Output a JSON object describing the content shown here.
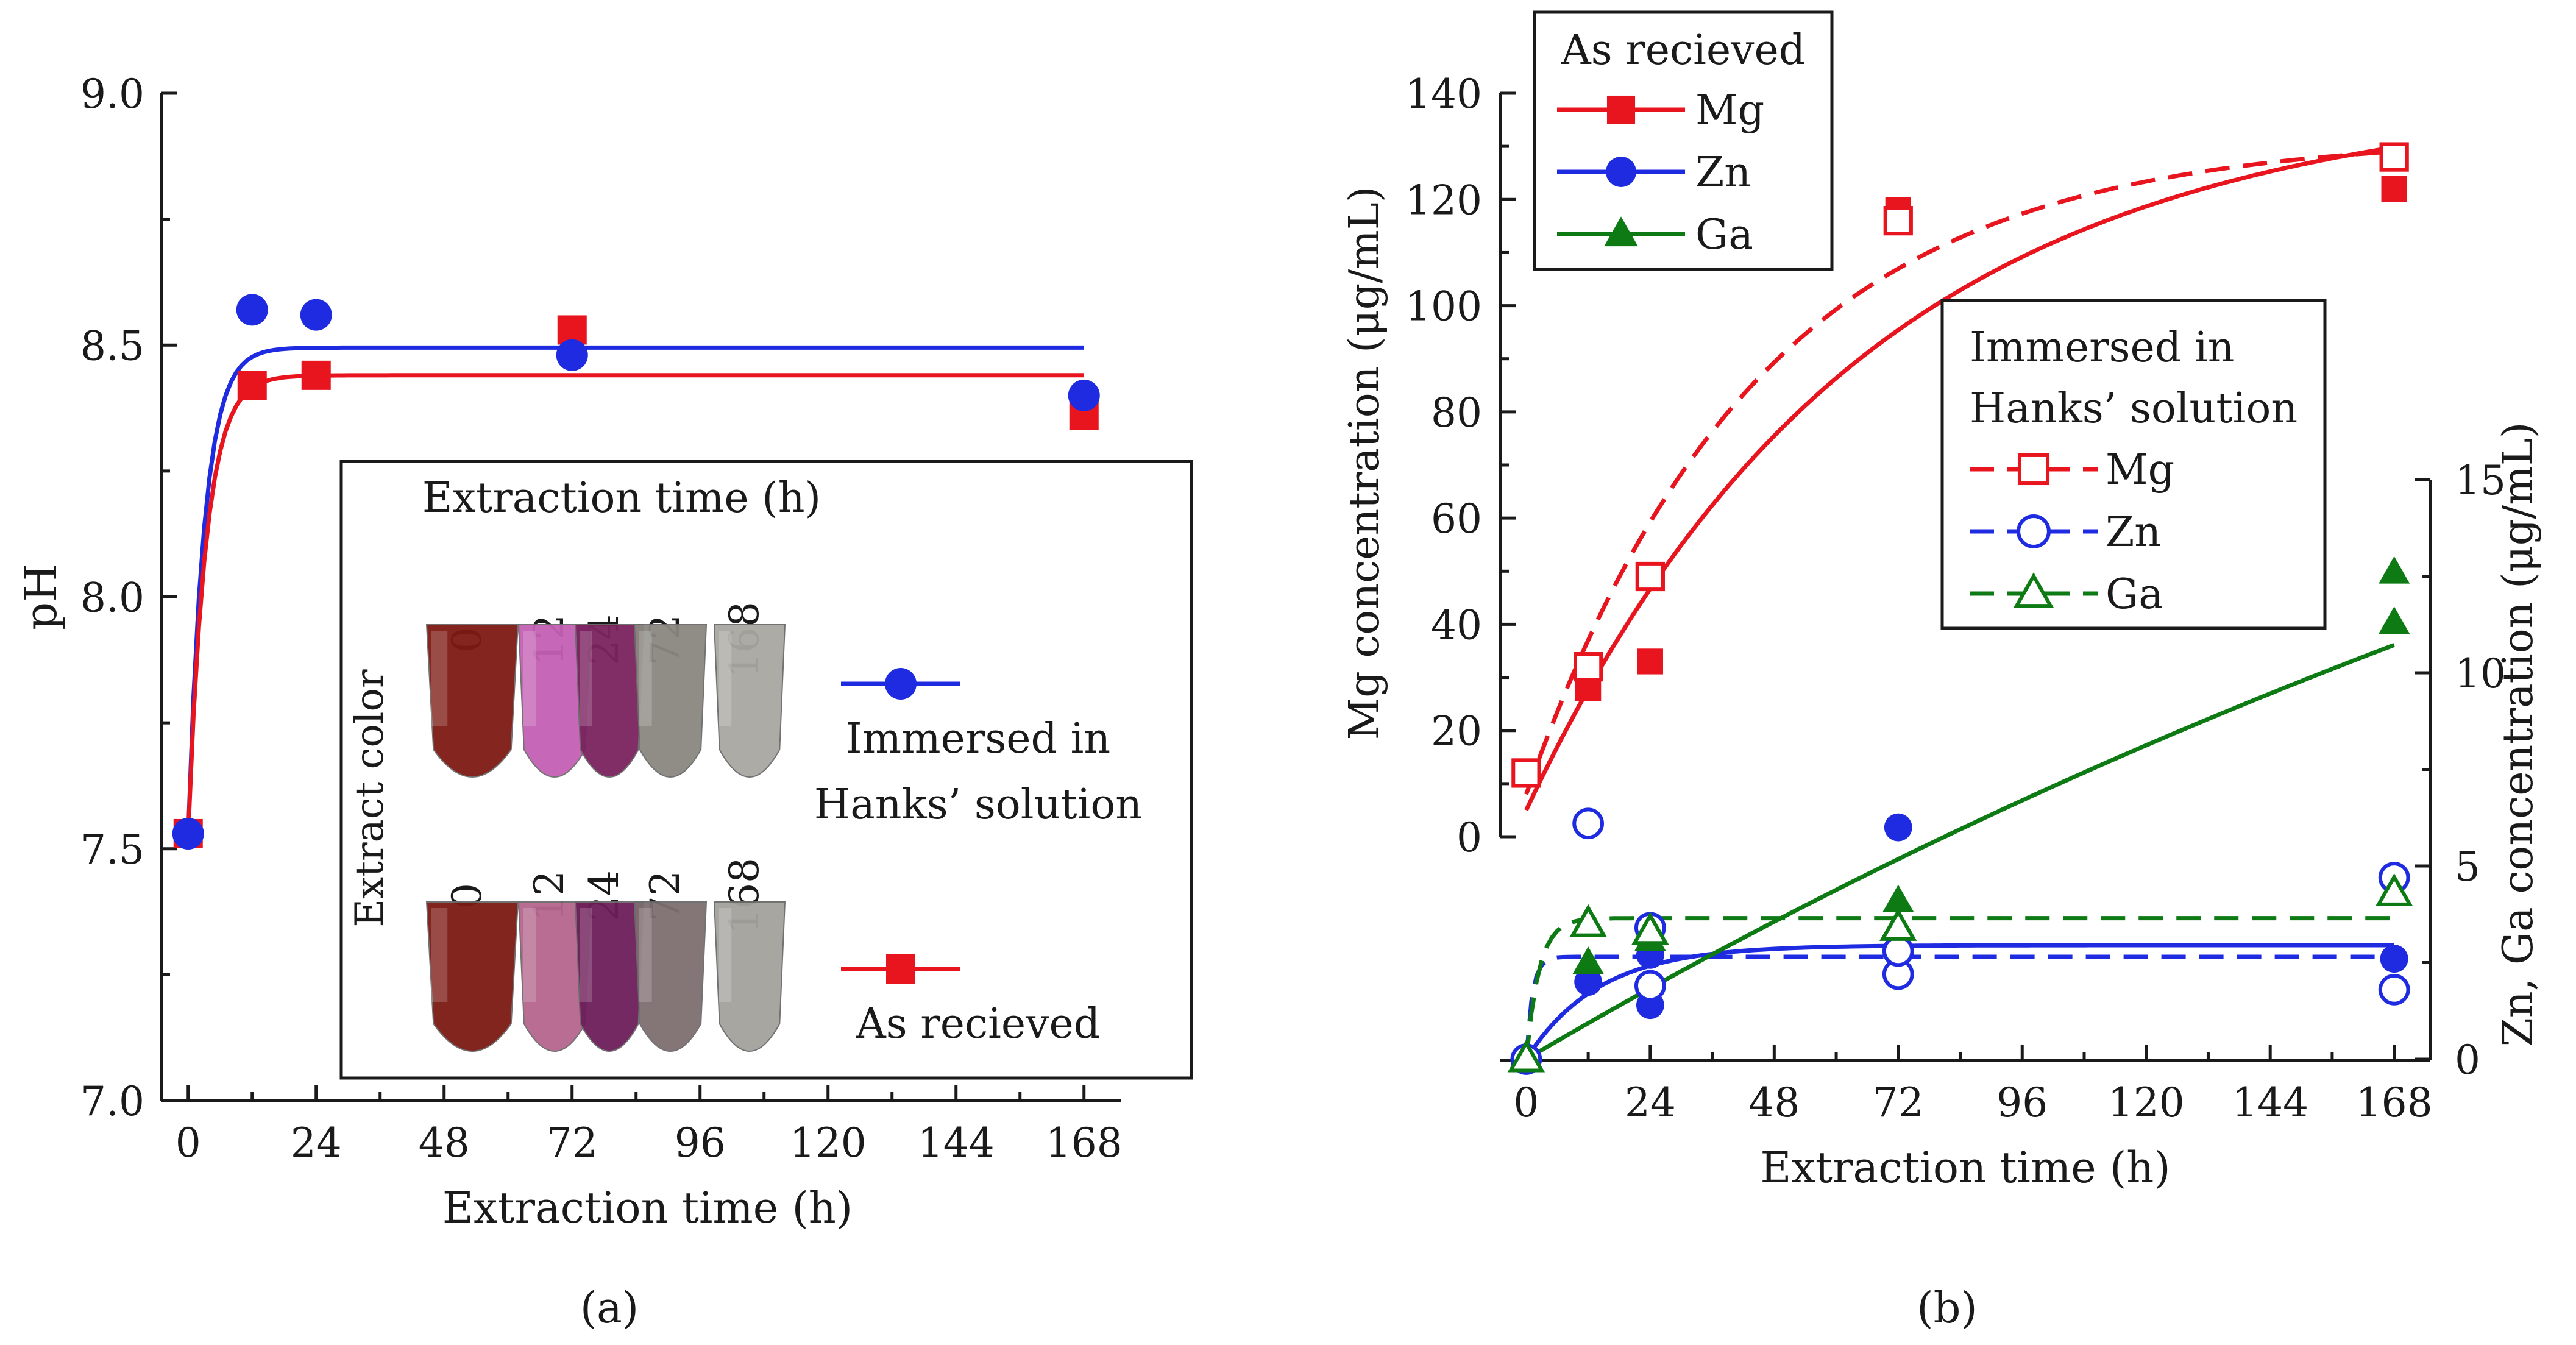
{
  "colors": {
    "red": "#e8141e",
    "blue": "#1f2be0",
    "green": "#0d7a14",
    "black": "#1a1a1a"
  },
  "chart_data": [
    {
      "id": "a",
      "type": "scatter",
      "panel_label": "a",
      "xlabel": "Extraction time (h)",
      "ylabel": "pH",
      "xlim": [
        -5,
        175
      ],
      "ylim": [
        7.0,
        9.0
      ],
      "xticks": [
        0,
        24,
        48,
        72,
        96,
        120,
        144,
        168
      ],
      "yticks": [
        "7.0",
        "7.5",
        "8.0",
        "8.5",
        "9.0"
      ],
      "series": [
        {
          "name": "Immersed in Hanks’ solution",
          "color": "blue",
          "marker": "circle",
          "x": [
            0,
            12,
            24,
            72,
            168
          ],
          "y": [
            7.53,
            8.57,
            8.56,
            8.48,
            8.4
          ],
          "fit": {
            "y0": 7.53,
            "plateau": 8.495,
            "rate": 0.33
          }
        },
        {
          "name": "As recieved",
          "color": "red",
          "marker": "square",
          "x": [
            0,
            12,
            24,
            72,
            168
          ],
          "y": [
            7.53,
            8.42,
            8.44,
            8.53,
            8.36
          ],
          "fit": {
            "y0": 7.53,
            "plateau": 8.44,
            "rate": 0.3
          }
        }
      ],
      "inset": {
        "title": "Extraction time (h)",
        "row_label": "Extract color",
        "times": [
          "0",
          "12",
          "24",
          "72",
          "168"
        ],
        "rows": [
          {
            "name": "Immersed in Hanks’ solution",
            "legend_lines": [
              "Immersed in",
              "Hanks’ solution"
            ],
            "marker": "circle",
            "color": "blue",
            "tube_colors": [
              "#7e1a14",
              "#c35fb4",
              "#7b235f",
              "#8a8780",
              "#a9a7a1"
            ]
          },
          {
            "name": "As recieved",
            "legend_lines": [
              "As recieved"
            ],
            "marker": "square",
            "color": "red",
            "tube_colors": [
              "#7d1a14",
              "#b6668e",
              "#6e1e5a",
              "#7e6e70",
              "#a4a29c"
            ]
          }
        ]
      }
    },
    {
      "id": "b",
      "type": "scatter",
      "panel_label": "b",
      "xlabel": "Extraction time (h)",
      "ylabel_left": "Mg concentration (μg/mL)",
      "ylabel_right": "Zn, Ga concentration (μg/mL)",
      "xlim": [
        -5,
        175
      ],
      "ylim_left": [
        -42,
        140
      ],
      "ylim_right": [
        0,
        15
      ],
      "xticks": [
        0,
        24,
        48,
        72,
        96,
        120,
        144,
        168
      ],
      "yticks_left": [
        0,
        20,
        40,
        60,
        80,
        100,
        120,
        140
      ],
      "yticks_right": [
        0,
        5,
        10,
        15
      ],
      "legend_as_received": {
        "title": "As recieved",
        "entries": [
          "Mg",
          "Zn",
          "Ga"
        ]
      },
      "legend_immersed": {
        "title_lines": [
          "Immersed in",
          "Hanks’ solution"
        ],
        "entries": [
          "Mg",
          "Zn",
          "Ga"
        ]
      },
      "series": [
        {
          "name": "Mg",
          "condition": "As recieved",
          "axis": "left",
          "color": "red",
          "marker": "square",
          "filled": true,
          "x": [
            0,
            12,
            24,
            72,
            168
          ],
          "y": [
            12,
            28,
            33,
            118,
            122
          ],
          "fit": {
            "type": "exp",
            "y0": 5,
            "plateau": 140,
            "tau": 65,
            "dash": false
          }
        },
        {
          "name": "Mg",
          "condition": "Immersed in Hanks’ solution",
          "axis": "left",
          "color": "red",
          "marker": "square",
          "filled": false,
          "x": [
            0,
            12,
            24,
            72,
            168
          ],
          "y": [
            12,
            32,
            49,
            116,
            128
          ],
          "fit": {
            "type": "exp",
            "y0": 8,
            "plateau": 132,
            "tau": 45,
            "dash": true
          }
        },
        {
          "name": "Zn",
          "condition": "As recieved",
          "axis": "right",
          "color": "blue",
          "marker": "circle",
          "filled": true,
          "x": [
            0,
            12,
            24,
            24,
            72,
            168,
            168
          ],
          "y": [
            0,
            2.0,
            1.4,
            2.7,
            6.0,
            2.6,
            2.6
          ],
          "fit": {
            "type": "exp",
            "y0": 0,
            "plateau": 2.95,
            "tau": 14,
            "dash": false
          }
        },
        {
          "name": "Zn",
          "condition": "Immersed in Hanks’ solution",
          "axis": "right",
          "color": "blue",
          "marker": "circle",
          "filled": false,
          "x": [
            0,
            12,
            24,
            24,
            72,
            72,
            168,
            168
          ],
          "y": [
            0,
            6.1,
            1.9,
            3.4,
            2.2,
            2.8,
            4.7,
            1.8
          ],
          "fit": {
            "type": "exp",
            "y0": 0,
            "plateau": 2.65,
            "tau": 1.2,
            "dash": true
          }
        },
        {
          "name": "Ga",
          "condition": "As recieved",
          "axis": "right",
          "color": "green",
          "marker": "triangle",
          "filled": true,
          "x": [
            0,
            12,
            24,
            72,
            168,
            168
          ],
          "y": [
            0,
            2.5,
            3.1,
            4.1,
            11.3,
            12.6
          ],
          "fit": {
            "type": "linear_sat",
            "y0": 0,
            "plateau": 30,
            "tau": 380,
            "dash": false
          }
        },
        {
          "name": "Ga",
          "condition": "Immersed in Hanks’ solution",
          "axis": "right",
          "color": "green",
          "marker": "triangle",
          "filled": false,
          "x": [
            0,
            12,
            24,
            72,
            168
          ],
          "y": [
            0,
            3.5,
            3.3,
            3.4,
            4.3
          ],
          "fit": {
            "type": "exp",
            "y0": 0,
            "plateau": 3.65,
            "tau": 2.5,
            "dash": true
          }
        }
      ]
    }
  ]
}
